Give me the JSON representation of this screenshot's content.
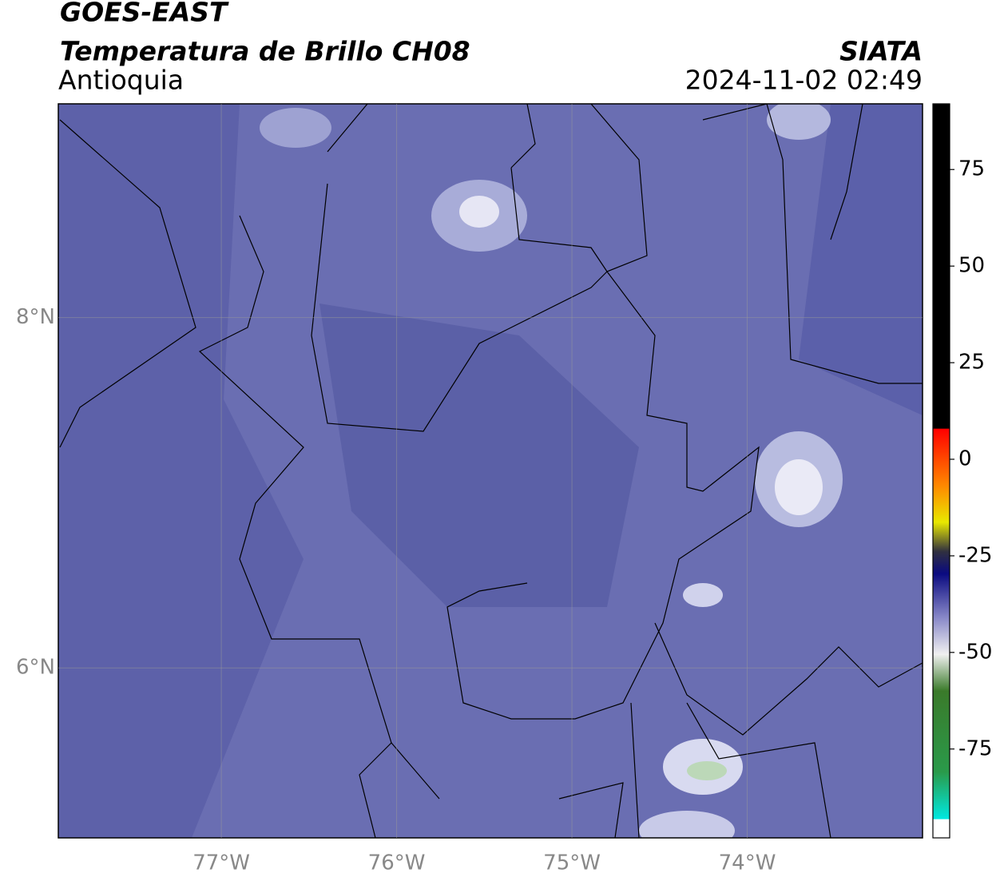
{
  "header": {
    "satellite": "GOES-EAST",
    "product": "Temperatura de Brillo CH08",
    "region": "Antioquia",
    "source": "SIATA",
    "datetime": "2024-11-02 02:49"
  },
  "map": {
    "lon_range": [
      -77.93,
      -73.0
    ],
    "lat_range": [
      5.03,
      9.22
    ],
    "lon_ticks": [
      {
        "value": -77,
        "label": "77°W"
      },
      {
        "value": -76,
        "label": "76°W"
      },
      {
        "value": -75,
        "label": "75°W"
      },
      {
        "value": -74,
        "label": "74°W"
      }
    ],
    "lat_ticks": [
      {
        "value": 8,
        "label": "8°N"
      },
      {
        "value": 6,
        "label": "6°N"
      }
    ]
  },
  "colorbar": {
    "range": [
      -98,
      92
    ],
    "ticks": [
      75,
      50,
      25,
      0,
      -25,
      -50,
      -75
    ]
  }
}
